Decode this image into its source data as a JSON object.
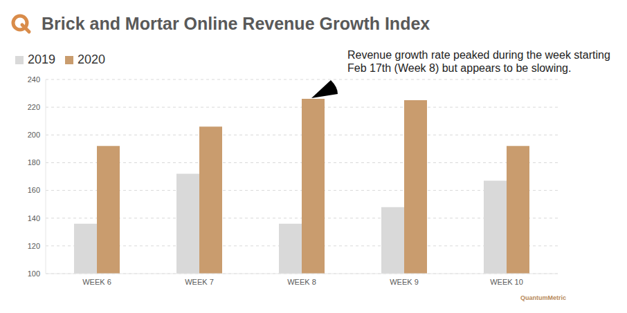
{
  "chart_data": {
    "type": "bar",
    "title": "Brick and Mortar Online Revenue Growth Index",
    "categories": [
      "WEEK 6",
      "WEEK 7",
      "WEEK 8",
      "WEEK 9",
      "WEEK 10"
    ],
    "series": [
      {
        "name": "2019",
        "color": "#d9d9d9",
        "values": [
          136,
          172,
          136,
          148,
          167
        ]
      },
      {
        "name": "2020",
        "color": "#c99c6e",
        "values": [
          192,
          206,
          226,
          225,
          192
        ]
      }
    ],
    "ylim": [
      100,
      240
    ],
    "yticks": [
      100,
      120,
      140,
      160,
      180,
      200,
      220,
      240
    ],
    "grid": true,
    "legend": "top-left",
    "annotations": [
      "Revenue growth rate peaked during the week starting Feb 17th (Week 8) but appears to be slowing."
    ],
    "source": "QuantumMetric"
  }
}
